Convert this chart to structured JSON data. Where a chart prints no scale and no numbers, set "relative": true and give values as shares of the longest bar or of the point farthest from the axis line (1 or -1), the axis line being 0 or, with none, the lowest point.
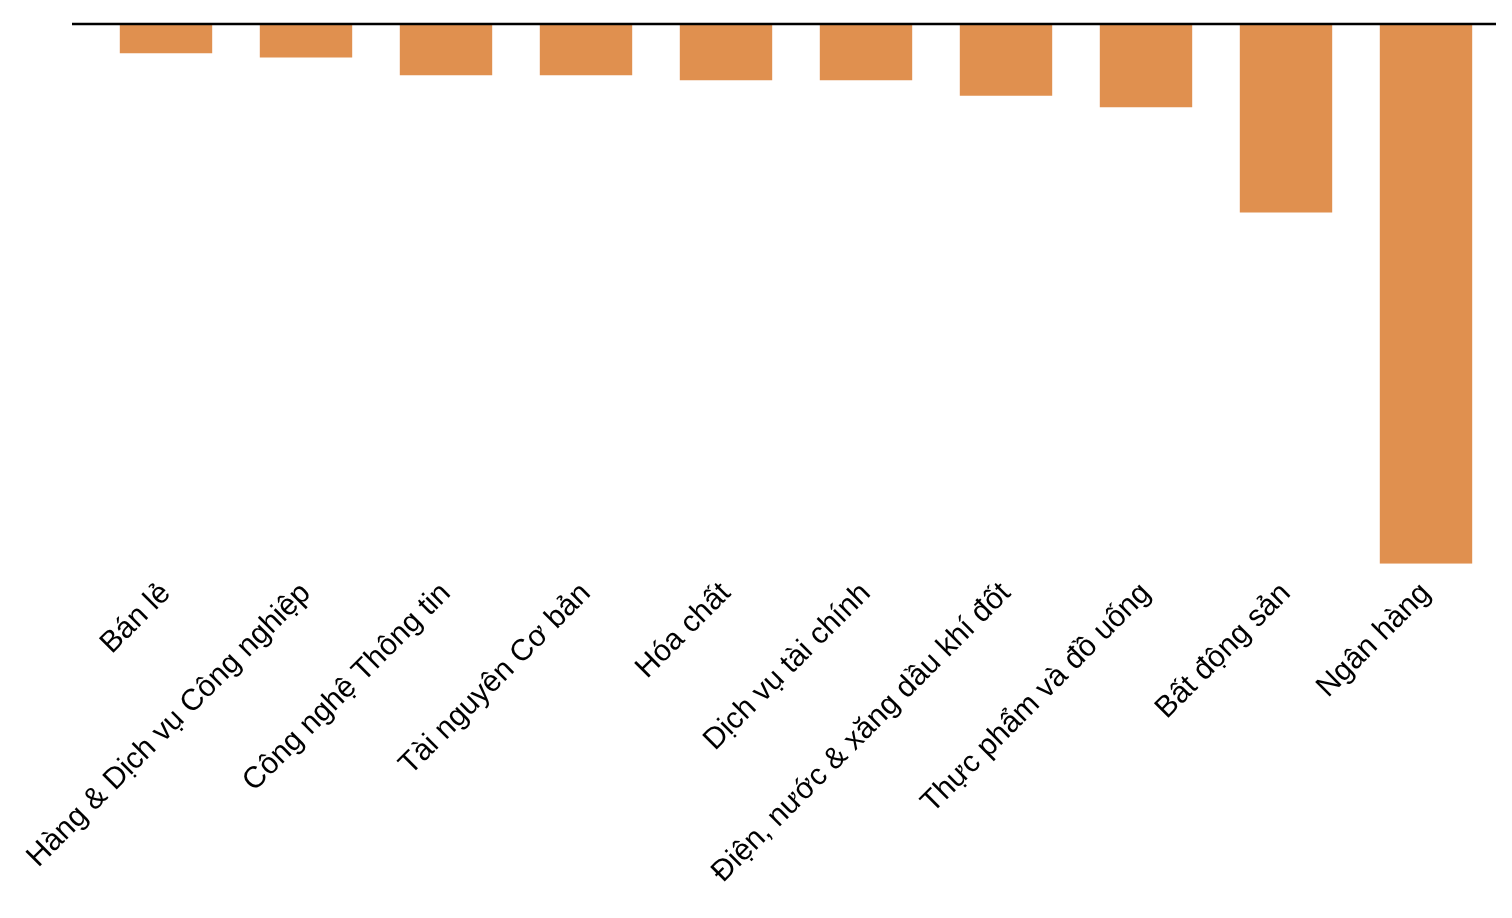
{
  "chart_data": {
    "type": "bar",
    "relative": true,
    "categories": [
      "Bán lẻ",
      "Hàng & Dịch vụ Công nghiệp",
      "Công nghệ Thông tin",
      "Tài nguyên Cơ bản",
      "Hóa chất",
      "Dịch vụ tài chính",
      "Điện, nước & xăng dầu khí đốt",
      "Thực phẩm và đồ uống",
      "Bất động sản",
      "Ngân hàng"
    ],
    "values": [
      -0.054,
      -0.062,
      -0.095,
      -0.095,
      -0.104,
      -0.104,
      -0.133,
      -0.154,
      -0.349,
      -1
    ],
    "color": "#e0904f",
    "grid": false,
    "legend": false
  }
}
